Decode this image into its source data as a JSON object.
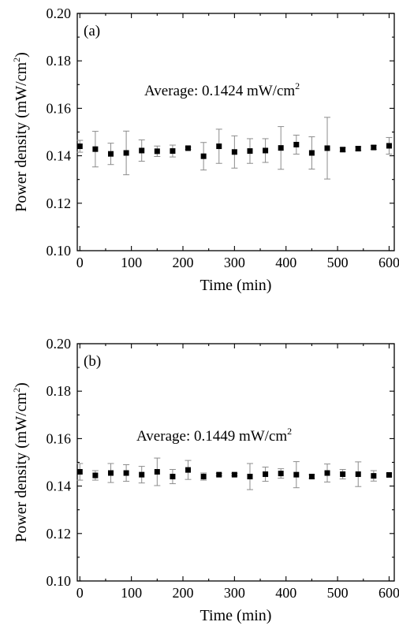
{
  "chart_data": [
    {
      "type": "scatter",
      "panel_label": "(a)",
      "annotation": {
        "text": "Average: 0.1424 mW/cm",
        "sup": "2"
      },
      "xlabel": "Time (min)",
      "ylabel": {
        "text": "Power density (mW/cm",
        "sup": "2",
        "close": ")"
      },
      "xlim": [
        -5,
        610
      ],
      "ylim": [
        0.1,
        0.2
      ],
      "xticks": [
        0,
        100,
        200,
        300,
        400,
        500,
        600
      ],
      "yticks": [
        0.1,
        0.12,
        0.14,
        0.16,
        0.18,
        0.2
      ],
      "ytick_labels": [
        "0.10",
        "0.12",
        "0.14",
        "0.16",
        "0.18",
        "0.20"
      ],
      "grid": false,
      "x": [
        0,
        30,
        60,
        90,
        120,
        150,
        180,
        210,
        240,
        270,
        300,
        330,
        360,
        390,
        420,
        450,
        480,
        510,
        540,
        570,
        600
      ],
      "y": [
        0.144,
        0.1428,
        0.1408,
        0.1412,
        0.1422,
        0.1419,
        0.142,
        0.1432,
        0.1398,
        0.144,
        0.1416,
        0.142,
        0.1422,
        0.1433,
        0.1447,
        0.1412,
        0.1432,
        0.1426,
        0.143,
        0.1435,
        0.1442
      ],
      "yerr": [
        0.0025,
        0.0075,
        0.0045,
        0.0092,
        0.0045,
        0.0022,
        0.0025,
        0.0005,
        0.0058,
        0.0072,
        0.0068,
        0.0052,
        0.005,
        0.009,
        0.004,
        0.0068,
        0.013,
        0.0008,
        0.0008,
        0.0008,
        0.0035
      ]
    },
    {
      "type": "scatter",
      "panel_label": "(b)",
      "annotation": {
        "text": "Average: 0.1449 mW/cm",
        "sup": "2"
      },
      "xlabel": "Time (min)",
      "ylabel": {
        "text": "Power density (mW/cm",
        "sup": "2",
        "close": ")"
      },
      "xlim": [
        -5,
        610
      ],
      "ylim": [
        0.1,
        0.2
      ],
      "xticks": [
        0,
        100,
        200,
        300,
        400,
        500,
        600
      ],
      "yticks": [
        0.1,
        0.12,
        0.14,
        0.16,
        0.18,
        0.2
      ],
      "ytick_labels": [
        "0.10",
        "0.12",
        "0.14",
        "0.16",
        "0.18",
        "0.20"
      ],
      "grid": false,
      "x": [
        0,
        30,
        60,
        90,
        120,
        150,
        180,
        210,
        240,
        270,
        300,
        330,
        360,
        390,
        420,
        450,
        480,
        510,
        540,
        570,
        600
      ],
      "y": [
        0.146,
        0.1445,
        0.1455,
        0.1455,
        0.1448,
        0.146,
        0.144,
        0.1468,
        0.144,
        0.1448,
        0.1448,
        0.144,
        0.145,
        0.1453,
        0.1448,
        0.144,
        0.1455,
        0.145,
        0.145,
        0.1443,
        0.1447
      ],
      "yerr": [
        0.0035,
        0.002,
        0.004,
        0.0035,
        0.0035,
        0.0058,
        0.003,
        0.004,
        0.0015,
        0.0005,
        0.0005,
        0.0055,
        0.003,
        0.002,
        0.0055,
        0.0008,
        0.0038,
        0.002,
        0.0052,
        0.0022,
        0.0005
      ]
    }
  ]
}
